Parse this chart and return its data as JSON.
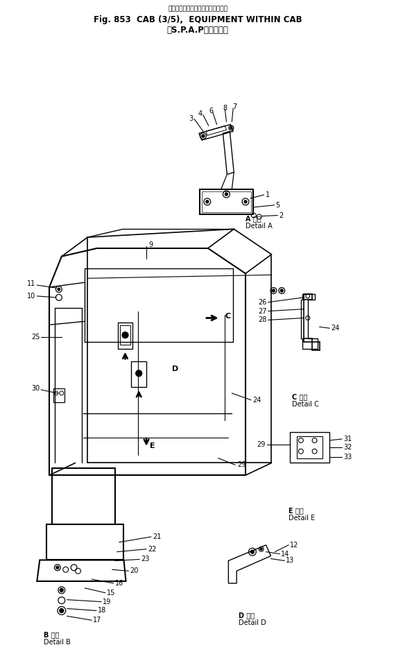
{
  "title_line1": "キャブ　　　キャブ内艤品",
  "title_line2": "Fig. 853  CAB (3/5),  EQUIPMENT WITHIN CAB",
  "title_line3": "(S.P.A.P装着車用)",
  "bg_color": "#ffffff",
  "line_color": "#000000"
}
